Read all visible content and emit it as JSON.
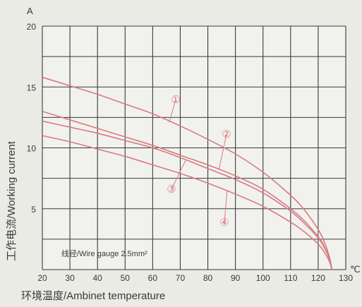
{
  "chart_data": {
    "type": "line",
    "xlabel": "环境温度/Ambinet temperature",
    "ylabel": "工作电流/Working current",
    "x_unit": "℃",
    "y_unit": "A",
    "xlim": [
      20,
      130
    ],
    "ylim": [
      0,
      20
    ],
    "x_ticks": [
      20,
      30,
      40,
      50,
      60,
      70,
      80,
      90,
      100,
      110,
      120,
      130
    ],
    "y_ticks": [
      5,
      10,
      15,
      20
    ],
    "grid": true,
    "annotation": "线径/Wire gauge 2.5mm²",
    "series": [
      {
        "name": "①",
        "x": [
          20,
          30,
          40,
          50,
          60,
          70,
          80,
          90,
          100,
          110,
          115,
          120,
          122,
          124,
          125
        ],
        "y": [
          15.8,
          15.1,
          14.4,
          13.6,
          12.8,
          11.8,
          10.7,
          9.5,
          8.0,
          6.1,
          4.9,
          3.3,
          2.4,
          1.1,
          0.0
        ]
      },
      {
        "name": "②",
        "x": [
          20,
          30,
          40,
          50,
          60,
          70,
          80,
          90,
          100,
          110,
          115,
          120,
          122,
          124,
          125
        ],
        "y": [
          13.0,
          12.3,
          11.6,
          10.9,
          10.2,
          9.4,
          8.6,
          7.7,
          6.6,
          5.0,
          4.0,
          2.7,
          2.0,
          0.9,
          0.0
        ]
      },
      {
        "name": "③",
        "x": [
          20,
          30,
          40,
          50,
          60,
          70,
          80,
          90,
          100,
          110,
          115,
          120,
          122,
          124,
          125
        ],
        "y": [
          12.2,
          11.7,
          11.2,
          10.6,
          10.0,
          9.2,
          8.3,
          7.4,
          6.3,
          4.8,
          3.8,
          2.6,
          1.9,
          0.9,
          0.0
        ]
      },
      {
        "name": "④",
        "x": [
          20,
          30,
          40,
          50,
          60,
          70,
          80,
          90,
          100,
          110,
          115,
          120,
          122,
          124,
          125
        ],
        "y": [
          11.0,
          10.5,
          9.9,
          9.3,
          8.6,
          7.9,
          7.1,
          6.2,
          5.2,
          3.9,
          3.1,
          2.1,
          1.5,
          0.7,
          0.0
        ]
      }
    ],
    "colors": {
      "curve": "#d97a80",
      "grid": "#3a3a3a",
      "text": "#3a3a3a",
      "background": "#e9ebe4",
      "plot_background": "#f1f2ee"
    }
  }
}
